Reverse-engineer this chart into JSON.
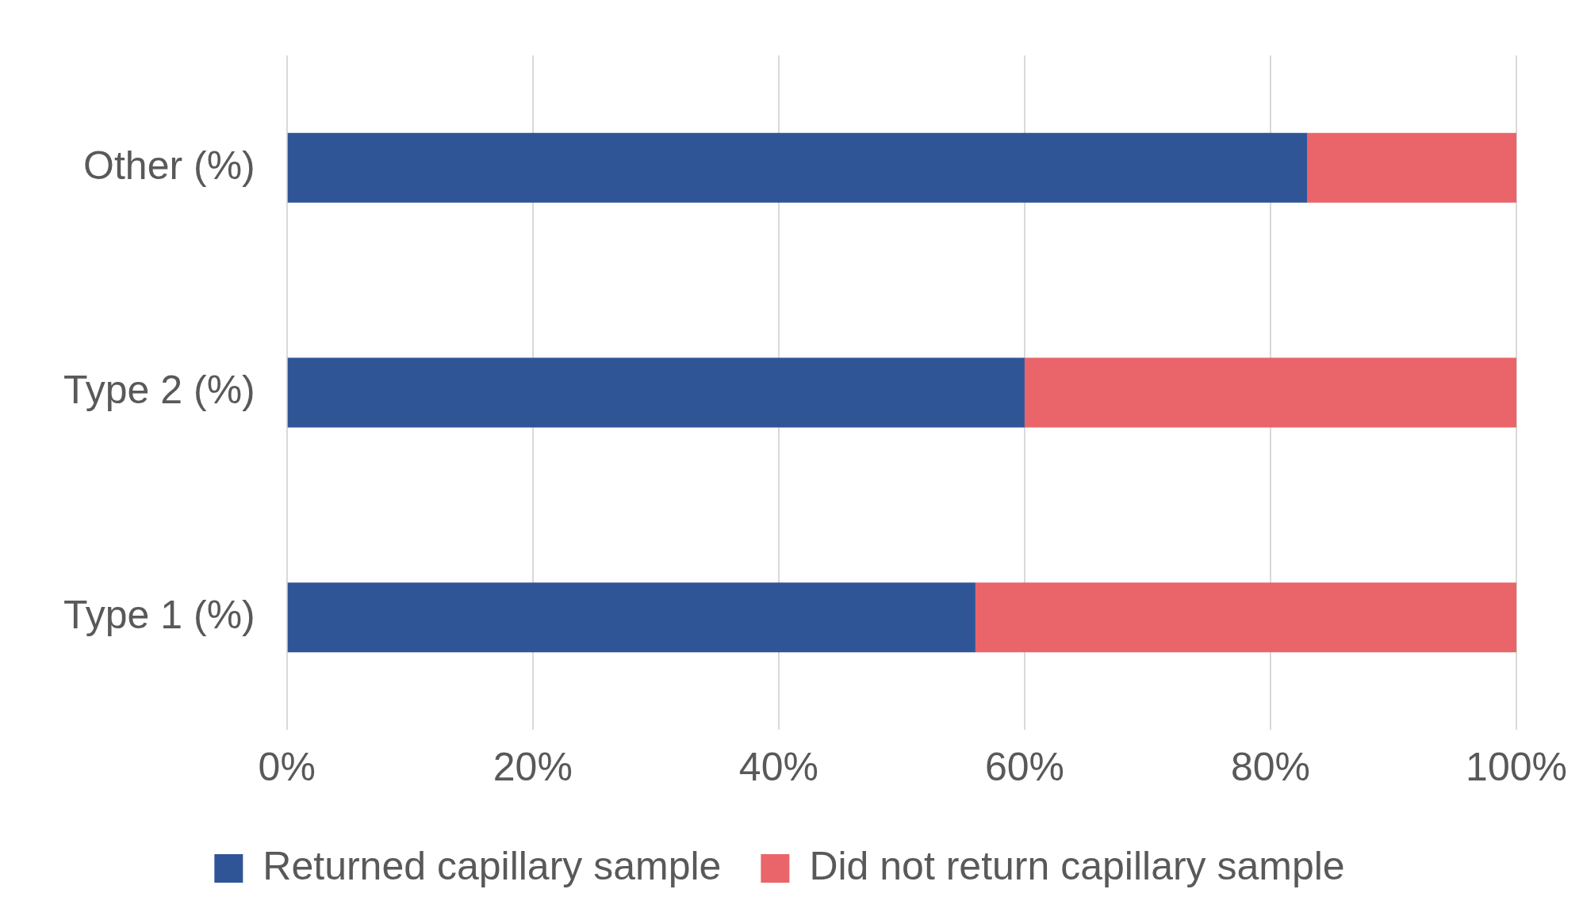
{
  "chart_data": {
    "type": "bar",
    "orientation": "horizontal",
    "stacked": true,
    "categories": [
      "Other (%)",
      "Type 2 (%)",
      "Type 1 (%)"
    ],
    "series": [
      {
        "name": "Returned capillary sample",
        "color": "#2f5597",
        "values": [
          83,
          60,
          56
        ]
      },
      {
        "name": "Did not return capillary sample",
        "color": "#e9656a",
        "values": [
          17,
          40,
          44
        ]
      }
    ],
    "xlim": [
      0,
      100
    ],
    "xticks": [
      {
        "value": 0,
        "label": "0%"
      },
      {
        "value": 20,
        "label": "20%"
      },
      {
        "value": 40,
        "label": "40%"
      },
      {
        "value": 60,
        "label": "60%"
      },
      {
        "value": 80,
        "label": "80%"
      },
      {
        "value": 100,
        "label": "100%"
      }
    ],
    "grid": "x",
    "legend": "bottom"
  }
}
